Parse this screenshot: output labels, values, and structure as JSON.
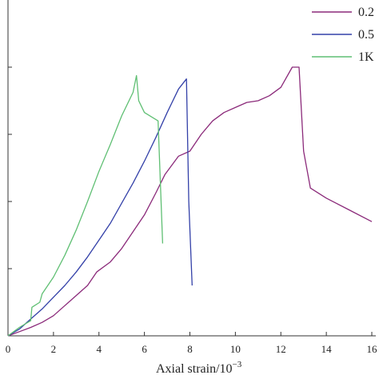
{
  "chart_data": {
    "type": "line",
    "xlabel": "Axial strain/10",
    "xlabel_exponent": "−3",
    "xlim": [
      0,
      16
    ],
    "x_ticks": [
      "0",
      "2",
      "4",
      "6",
      "8",
      "10",
      "12",
      "14",
      "16"
    ],
    "grid": false,
    "legend_position": "top-right",
    "series": [
      {
        "name": "0.2",
        "color": "#8b2a7a",
        "x": [
          0,
          0.5,
          1.0,
          1.5,
          2.0,
          2.5,
          3.0,
          3.5,
          3.9,
          4.5,
          5.0,
          5.5,
          6.0,
          6.5,
          6.9,
          7.5,
          8.0,
          8.5,
          9.0,
          9.5,
          10.0,
          10.5,
          11.0,
          11.5,
          12.0,
          12.5,
          12.8,
          13.0,
          13.3,
          14.0,
          15.0,
          16.0
        ],
        "y": [
          0,
          2.5,
          5,
          8,
          12,
          18,
          24,
          30,
          38,
          44,
          52,
          62,
          72,
          85,
          96,
          107,
          110,
          120,
          128,
          133,
          136,
          139,
          140,
          143,
          148,
          160,
          160,
          110,
          88,
          82,
          75,
          68
        ]
      },
      {
        "name": "0.5",
        "color": "#3340a8",
        "x": [
          0,
          0.5,
          1.0,
          1.5,
          2.0,
          2.5,
          3.0,
          3.5,
          4.0,
          4.5,
          5.0,
          5.5,
          6.0,
          6.5,
          7.0,
          7.5,
          7.85,
          7.95,
          8.1
        ],
        "y": [
          0,
          4,
          10,
          16,
          23,
          30,
          38,
          47,
          57,
          67,
          79,
          91,
          104,
          118,
          133,
          147,
          153,
          80,
          30
        ]
      },
      {
        "name": "1K",
        "color": "#5fbf73",
        "x": [
          0,
          0.5,
          1.0,
          1.05,
          1.4,
          1.5,
          2.0,
          2.5,
          3.0,
          3.5,
          4.0,
          4.5,
          5.0,
          5.5,
          5.65,
          5.75,
          6.0,
          6.6,
          6.8
        ],
        "y": [
          0,
          5,
          9,
          17,
          20,
          25,
          35,
          48,
          63,
          80,
          98,
          114,
          131,
          145,
          155,
          140,
          133,
          128,
          55
        ]
      }
    ]
  }
}
